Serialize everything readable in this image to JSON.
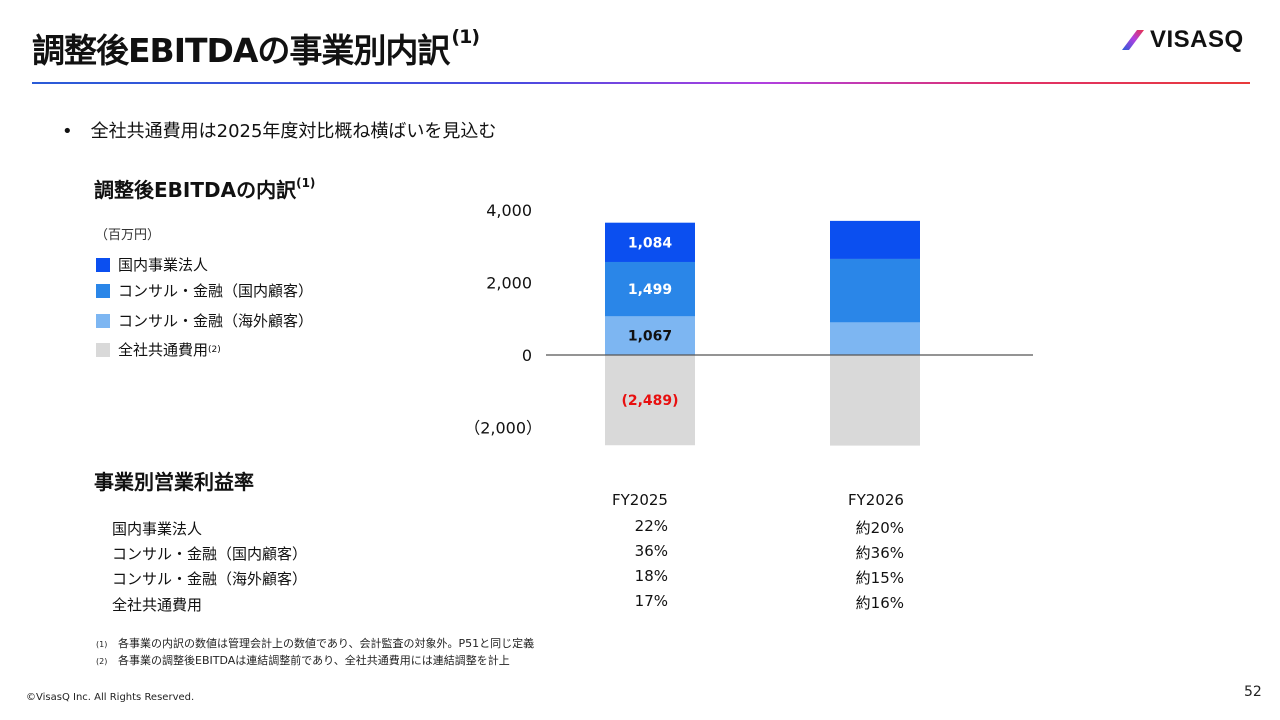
{
  "slide": {
    "title": "調整後EBITDAの事業別内訳",
    "title_note": "(1)",
    "logo_text": "VISASQ",
    "bullet": "全社共通費用は2025年度対比概ね横ばいを見込む",
    "page_number": "52",
    "copyright": "©VisasQ Inc. All Rights Reserved."
  },
  "section1": {
    "title": "調整後EBITDAの内訳",
    "title_note": "(1)",
    "unit": "（百万円）",
    "legend": [
      {
        "label": "国内事業法人",
        "note": "",
        "color": "#0b4ff0"
      },
      {
        "label": "コンサル・金融（国内顧客）",
        "note": "",
        "color": "#2a86e8"
      },
      {
        "label": "コンサル・金融（海外顧客）",
        "note": "",
        "color": "#7db6f2"
      },
      {
        "label": "全社共通費用",
        "note": "(2)",
        "color": "#d9d9d9"
      }
    ]
  },
  "chart_data": {
    "type": "bar",
    "stacked": true,
    "categories": [
      "FY2025",
      "FY2026"
    ],
    "y_ticks": [
      4000,
      2000,
      0,
      -2000
    ],
    "y_tick_labels": [
      "4,000",
      "2,000",
      "0",
      "（2,000）"
    ],
    "ylim": [
      -2600,
      4200
    ],
    "series": [
      {
        "name": "全社共通費用",
        "color": "#d9d9d9",
        "values": [
          -2489,
          -2500
        ],
        "labels": [
          "(2,489)",
          ""
        ],
        "label_color": "#e81010"
      },
      {
        "name": "コンサル・金融（海外顧客）",
        "color": "#7db6f2",
        "values": [
          1067,
          900
        ],
        "labels": [
          "1,067",
          ""
        ],
        "label_color": "#111111"
      },
      {
        "name": "コンサル・金融（国内顧客）",
        "color": "#2a86e8",
        "values": [
          1499,
          1750
        ],
        "labels": [
          "1,499",
          ""
        ],
        "label_color": "#ffffff"
      },
      {
        "name": "国内事業法人",
        "color": "#0b4ff0",
        "values": [
          1084,
          1050
        ],
        "labels": [
          "1,084",
          ""
        ],
        "label_color": "#ffffff"
      }
    ]
  },
  "section2": {
    "title": "事業別営業利益率",
    "columns": [
      "FY2025",
      "FY2026"
    ],
    "rows": [
      {
        "label": "国内事業法人",
        "fy2025": "22%",
        "fy2026": "約20%"
      },
      {
        "label": "コンサル・金融（国内顧客）",
        "fy2025": "36%",
        "fy2026": "約36%"
      },
      {
        "label": "コンサル・金融（海外顧客）",
        "fy2025": "18%",
        "fy2026": "約15%"
      },
      {
        "label": "全社共通費用",
        "fy2025": "17%",
        "fy2026": "約16%"
      }
    ]
  },
  "footnotes": [
    {
      "mark": "(1)",
      "text": "各事業の内訳の数値は管理会計上の数値であり、会計監査の対象外。P51と同じ定義"
    },
    {
      "mark": "(2)",
      "text": "各事業の調整後EBITDAは連結調整前であり、全社共通費用には連結調整を計上"
    }
  ]
}
